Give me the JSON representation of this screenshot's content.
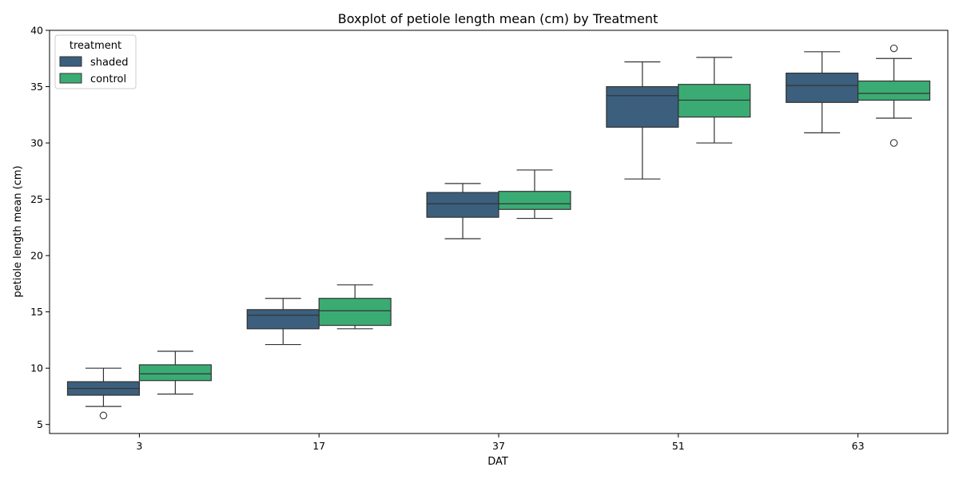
{
  "chart_data": {
    "type": "boxplot",
    "title": "Boxplot of petiole length mean (cm) by Treatment",
    "xlabel": "DAT",
    "ylabel": "petiole length mean (cm)",
    "ylim": [
      4.2,
      40
    ],
    "yticks": [
      5,
      10,
      15,
      20,
      25,
      30,
      35,
      40
    ],
    "categories": [
      "3",
      "17",
      "37",
      "51",
      "63"
    ],
    "legend": {
      "title": "treatment",
      "position": "top-left"
    },
    "series": [
      {
        "name": "shaded",
        "color": "#3b5f7d",
        "boxes": [
          {
            "whisker_low": 6.6,
            "q1": 7.6,
            "median": 8.2,
            "q3": 8.8,
            "whisker_high": 10.0,
            "outliers": [
              5.8
            ]
          },
          {
            "whisker_low": 12.1,
            "q1": 13.5,
            "median": 14.7,
            "q3": 15.2,
            "whisker_high": 16.2,
            "outliers": []
          },
          {
            "whisker_low": 21.5,
            "q1": 23.4,
            "median": 24.6,
            "q3": 25.6,
            "whisker_high": 26.4,
            "outliers": []
          },
          {
            "whisker_low": 26.8,
            "q1": 31.4,
            "median": 34.2,
            "q3": 35.0,
            "whisker_high": 37.2,
            "outliers": []
          },
          {
            "whisker_low": 30.9,
            "q1": 33.6,
            "median": 35.1,
            "q3": 36.2,
            "whisker_high": 38.1,
            "outliers": []
          }
        ]
      },
      {
        "name": "control",
        "color": "#3bab74",
        "boxes": [
          {
            "whisker_low": 7.7,
            "q1": 8.9,
            "median": 9.5,
            "q3": 10.3,
            "whisker_high": 11.5,
            "outliers": []
          },
          {
            "whisker_low": 13.5,
            "q1": 13.8,
            "median": 15.1,
            "q3": 16.2,
            "whisker_high": 17.4,
            "outliers": []
          },
          {
            "whisker_low": 23.3,
            "q1": 24.1,
            "median": 24.6,
            "q3": 25.7,
            "whisker_high": 27.6,
            "outliers": []
          },
          {
            "whisker_low": 30.0,
            "q1": 32.3,
            "median": 33.8,
            "q3": 35.2,
            "whisker_high": 37.6,
            "outliers": []
          },
          {
            "whisker_low": 32.2,
            "q1": 33.8,
            "median": 34.4,
            "q3": 35.5,
            "whisker_high": 37.5,
            "outliers": [
              38.4,
              30.0
            ]
          }
        ]
      }
    ]
  }
}
